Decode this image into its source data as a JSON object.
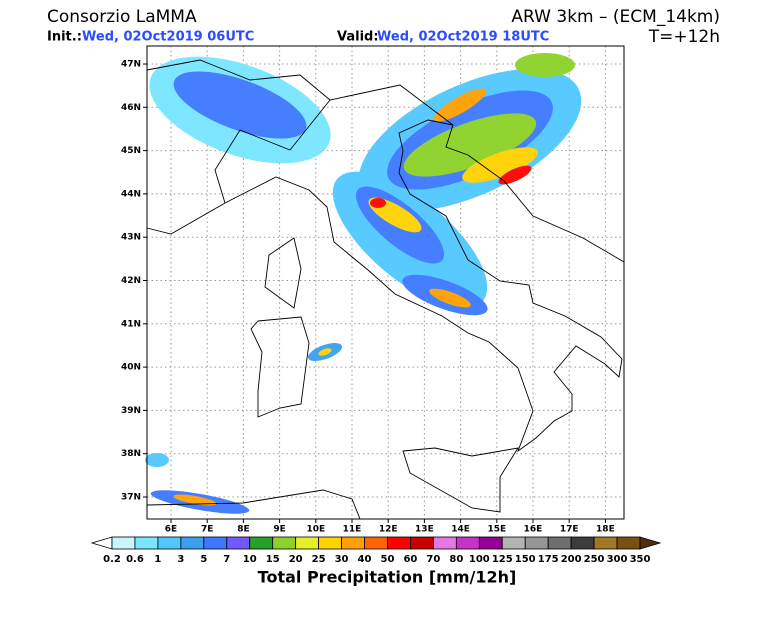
{
  "header": {
    "left_title": "Consorzio LaMMA",
    "init_label": "Init.:",
    "init_value": "Wed, 02Oct2019 06UTC",
    "valid_label": "Valid:",
    "valid_value": "Wed, 02Oct2019 18UTC",
    "model": "ARW 3km – (ECM_14km)",
    "lead": "T=+12h"
  },
  "map": {
    "lat_labels": [
      "47N",
      "46N",
      "45N",
      "44N",
      "43N",
      "42N",
      "41N",
      "40N",
      "39N",
      "38N",
      "37N"
    ],
    "lon_labels": [
      "6E",
      "7E",
      "8E",
      "9E",
      "10E",
      "11E",
      "12E",
      "13E",
      "14E",
      "15E",
      "16E",
      "17E",
      "18E"
    ]
  },
  "legend": {
    "labels": [
      0.2,
      0.6,
      1,
      3,
      5,
      7,
      10,
      15,
      20,
      25,
      30,
      40,
      50,
      60,
      70,
      80,
      100,
      125,
      150,
      175,
      200,
      250,
      300,
      350
    ],
    "colors": [
      "#ffffff",
      "#c8f5ff",
      "#78e6ff",
      "#50c8ff",
      "#3ca0f0",
      "#3c78ff",
      "#6e5aff",
      "#28a028",
      "#8cd228",
      "#e6f028",
      "#ffd200",
      "#ffa000",
      "#ff6400",
      "#ff0000",
      "#c80000",
      "#e678e6",
      "#c832c8",
      "#960096",
      "#b4b4b4",
      "#969696",
      "#6e6e6e",
      "#3c3c3c",
      "#a07828",
      "#785014",
      "#50300a"
    ],
    "title": "Total Precipitation [mm/12h]"
  }
}
